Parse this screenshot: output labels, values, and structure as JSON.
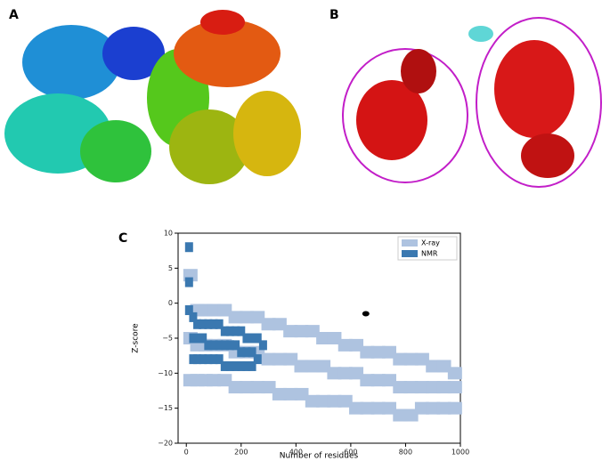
{
  "panels": [
    "A",
    "B"
  ],
  "chart_data": {
    "type": "scatter",
    "panel_label": "C",
    "xlabel": "Number of residues",
    "ylabel": "Z-score",
    "xlim": [
      -30,
      1000
    ],
    "ylim": [
      -20,
      10
    ],
    "xticks": [
      0,
      200,
      400,
      600,
      800,
      1000
    ],
    "yticks": [
      {
        "value": -20,
        "label": "−20"
      },
      {
        "value": -15,
        "label": "−15"
      },
      {
        "value": -10,
        "label": "−10"
      },
      {
        "value": -5,
        "label": "−5"
      },
      0,
      5,
      10
    ],
    "legend": "upper right",
    "series": [
      {
        "name": "X-ray",
        "color": "#aec3e0",
        "x": [
          15,
          40,
          70,
          100,
          140,
          180,
          220,
          260,
          300,
          340,
          380,
          420,
          460,
          500,
          540,
          580,
          620,
          660,
          700,
          740,
          780,
          820,
          860,
          900,
          940,
          980,
          15,
          40,
          70,
          100,
          140,
          180,
          220,
          260,
          300,
          340,
          380,
          420,
          460,
          500,
          540,
          580,
          620,
          660,
          700,
          740,
          780,
          820,
          860,
          900,
          940,
          980,
          15,
          40,
          70,
          100,
          140,
          180,
          220,
          260,
          300,
          340,
          380,
          420,
          460,
          500,
          540,
          580,
          620,
          660,
          700,
          740,
          780,
          820,
          860,
          900,
          940,
          980
        ],
        "values": [
          4,
          -1,
          -1,
          -1,
          -1,
          -2,
          -2,
          -2,
          -3,
          -3,
          -4,
          -4,
          -4,
          -5,
          -5,
          -6,
          -6,
          -7,
          -7,
          -7,
          -8,
          -8,
          -8,
          -9,
          -9,
          -10,
          -5,
          -6,
          -6,
          -6,
          -6,
          -7,
          -7,
          -7,
          -8,
          -8,
          -8,
          -9,
          -9,
          -9,
          -10,
          -10,
          -10,
          -11,
          -11,
          -11,
          -12,
          -12,
          -12,
          -12,
          -12,
          -12,
          -11,
          -11,
          -11,
          -11,
          -11,
          -12,
          -12,
          -12,
          -12,
          -13,
          -13,
          -13,
          -14,
          -14,
          -14,
          -14,
          -15,
          -15,
          -15,
          -15,
          -16,
          -16,
          -15,
          -15,
          -15,
          -15
        ]
      },
      {
        "name": "NMR",
        "color": "#3a78b0",
        "x": [
          10,
          10,
          10,
          25,
          40,
          60,
          80,
          100,
          120,
          140,
          160,
          180,
          200,
          220,
          240,
          260,
          280,
          25,
          40,
          60,
          80,
          100,
          120,
          140,
          160,
          180,
          200,
          220,
          240,
          260,
          25,
          40,
          60,
          80,
          100,
          120,
          140,
          160,
          180,
          200,
          220,
          240
        ],
        "values": [
          8,
          3,
          -1,
          -2,
          -3,
          -3,
          -3,
          -3,
          -3,
          -4,
          -4,
          -4,
          -4,
          -5,
          -5,
          -5,
          -6,
          -5,
          -5,
          -5,
          -6,
          -6,
          -6,
          -6,
          -6,
          -6,
          -7,
          -7,
          -7,
          -8,
          -8,
          -8,
          -8,
          -8,
          -8,
          -8,
          -9,
          -9,
          -9,
          -9,
          -9,
          -9
        ]
      }
    ],
    "marker": {
      "x": 655,
      "y": -1.5,
      "color": "#000000"
    }
  }
}
